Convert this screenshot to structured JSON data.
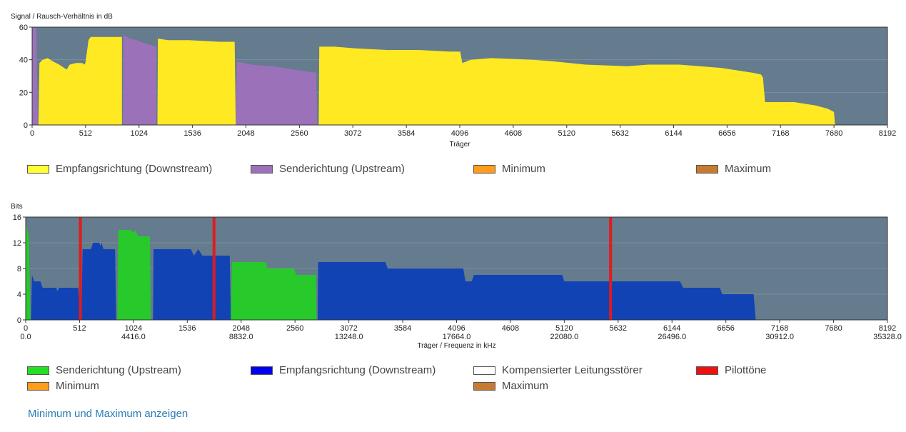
{
  "chart_data": [
    {
      "type": "area",
      "ylabel": "Signal / Rausch-Verhältnis in dB",
      "xlabel": "Träger",
      "ylim": [
        0,
        60
      ],
      "xlim": [
        0,
        8192
      ],
      "yticks": [
        "0",
        "20",
        "40",
        "60"
      ],
      "xticks": [
        "0",
        "512",
        "1024",
        "1536",
        "2048",
        "2560",
        "3072",
        "3584",
        "4096",
        "4608",
        "5120",
        "5632",
        "6144",
        "6656",
        "7168",
        "7680",
        "8192"
      ],
      "plot_background": "#657b8e",
      "grid": true,
      "legend_position": "bottom",
      "series": [
        {
          "name": "Senderichtung (Upstream)",
          "color": "#9b72b9",
          "segments": [
            [
              [
                0,
                0
              ],
              [
                5,
                59
              ],
              [
                20,
                60
              ],
              [
                40,
                59
              ],
              [
                55,
                0
              ]
            ],
            [
              [
                870,
                0
              ],
              [
                875,
                55
              ],
              [
                940,
                53
              ],
              [
                1000,
                52
              ],
              [
                1080,
                50
              ],
              [
                1190,
                48
              ],
              [
                1190,
                0
              ]
            ],
            [
              [
                1950,
                0
              ],
              [
                1960,
                39
              ],
              [
                2100,
                37
              ],
              [
                2300,
                36
              ],
              [
                2500,
                34
              ],
              [
                2720,
                32
              ],
              [
                2730,
                0
              ]
            ]
          ]
        },
        {
          "name": "Empfangsrichtung (Downstream)",
          "color": "#ffe922",
          "segments": [
            [
              [
                60,
                0
              ],
              [
                70,
                38
              ],
              [
                100,
                40
              ],
              [
                150,
                41
              ],
              [
                200,
                39
              ],
              [
                260,
                37
              ],
              [
                330,
                34
              ],
              [
                360,
                37
              ],
              [
                420,
                38
              ],
              [
                480,
                38
              ],
              [
                500,
                37
              ],
              [
                510,
                38
              ],
              [
                525,
                45
              ],
              [
                540,
                52
              ],
              [
                560,
                54
              ],
              [
                860,
                54
              ],
              [
                860,
                0
              ]
            ],
            [
              [
                1200,
                0
              ],
              [
                1205,
                53
              ],
              [
                1300,
                52
              ],
              [
                1500,
                52
              ],
              [
                1800,
                51
              ],
              [
                1940,
                51
              ],
              [
                1950,
                0
              ]
            ],
            [
              [
                2745,
                0
              ],
              [
                2750,
                48
              ],
              [
                2900,
                48
              ],
              [
                3100,
                47
              ],
              [
                3400,
                46
              ],
              [
                3700,
                46
              ],
              [
                4000,
                45
              ],
              [
                4100,
                45
              ],
              [
                4120,
                38
              ],
              [
                4200,
                40
              ],
              [
                4400,
                41
              ],
              [
                4800,
                40
              ],
              [
                5000,
                39
              ],
              [
                5300,
                37
              ],
              [
                5700,
                36
              ],
              [
                5900,
                37
              ],
              [
                6200,
                37
              ],
              [
                6600,
                35
              ],
              [
                6900,
                32
              ],
              [
                6980,
                31
              ],
              [
                7000,
                29
              ],
              [
                7020,
                14
              ],
              [
                7300,
                14
              ],
              [
                7500,
                12
              ],
              [
                7620,
                10
              ],
              [
                7680,
                8
              ],
              [
                7690,
                0
              ]
            ]
          ]
        },
        {
          "name": "Minimum",
          "color": "#ff9c1a",
          "segments": []
        },
        {
          "name": "Maximum",
          "color": "#c87b30",
          "segments": []
        }
      ]
    },
    {
      "type": "area",
      "ylabel": "Bits",
      "xlabel": "Träger / Frequenz in kHz",
      "ylim": [
        0,
        16
      ],
      "xlim": [
        0,
        8192
      ],
      "yticks": [
        "0",
        "4",
        "8",
        "12",
        "16"
      ],
      "xticks": [
        "0",
        "512",
        "1024",
        "1536",
        "2048",
        "2560",
        "3072",
        "3584",
        "4096",
        "4608",
        "5120",
        "5632",
        "6144",
        "6656",
        "7168",
        "7680",
        "8192"
      ],
      "freq_ticks": [
        "0.0",
        "4416.0",
        "8832.0",
        "13248.0",
        "17664.0",
        "22080.0",
        "26496.0",
        "30912.0",
        "35328.0"
      ],
      "plot_background": "#657b8e",
      "grid": true,
      "legend_position": "bottom",
      "series": [
        {
          "name": "Senderichtung (Upstream)",
          "color": "#27c92b",
          "segments": [
            [
              [
                0,
                0
              ],
              [
                2,
                15
              ],
              [
                15,
                14
              ],
              [
                30,
                13
              ],
              [
                45,
                0
              ]
            ],
            [
              [
                870,
                0
              ],
              [
                880,
                14
              ],
              [
                1000,
                14
              ],
              [
                1020,
                13.5
              ],
              [
                1040,
                14
              ],
              [
                1070,
                13
              ],
              [
                1180,
                13
              ],
              [
                1190,
                0
              ]
            ],
            [
              [
                1950,
                0
              ],
              [
                1960,
                9
              ],
              [
                2280,
                9
              ],
              [
                2300,
                8
              ],
              [
                2550,
                8
              ],
              [
                2570,
                7
              ],
              [
                2760,
                7
              ],
              [
                2765,
                0
              ]
            ]
          ]
        },
        {
          "name": "Empfangsrichtung (Downstream)",
          "color": "#1243b4",
          "segments": [
            [
              [
                50,
                0
              ],
              [
                60,
                7
              ],
              [
                80,
                6
              ],
              [
                140,
                6
              ],
              [
                160,
                5
              ],
              [
                290,
                5
              ],
              [
                300,
                4.5
              ],
              [
                320,
                5
              ],
              [
                500,
                5
              ],
              [
                520,
                0
              ]
            ],
            [
              [
                530,
                0
              ],
              [
                540,
                11
              ],
              [
                620,
                11
              ],
              [
                640,
                12
              ],
              [
                700,
                12
              ],
              [
                710,
                11.5
              ],
              [
                720,
                12
              ],
              [
                740,
                11
              ],
              [
                850,
                11
              ],
              [
                860,
                0
              ]
            ],
            [
              [
                1210,
                0
              ],
              [
                1215,
                11
              ],
              [
                1570,
                11
              ],
              [
                1600,
                10
              ],
              [
                1640,
                11
              ],
              [
                1680,
                10
              ],
              [
                1940,
                10
              ],
              [
                1950,
                0
              ]
            ],
            [
              [
                2775,
                0
              ],
              [
                2780,
                9
              ],
              [
                3420,
                9
              ],
              [
                3440,
                8
              ],
              [
                4160,
                8
              ],
              [
                4180,
                6
              ],
              [
                4240,
                6
              ],
              [
                4260,
                7
              ],
              [
                5100,
                7
              ],
              [
                5120,
                6
              ],
              [
                6220,
                6
              ],
              [
                6250,
                5
              ],
              [
                6600,
                5
              ],
              [
                6620,
                4
              ],
              [
                6920,
                4
              ],
              [
                6940,
                0
              ]
            ]
          ]
        },
        {
          "name": "Kompensierter Leitungsstörer",
          "color": "#ffffff",
          "segments": []
        },
        {
          "name": "Pilottöne",
          "color": "#e01b1b",
          "positions": [
            520,
            1790,
            5560
          ]
        },
        {
          "name": "Minimum",
          "color": "#ff9c1a",
          "segments": []
        },
        {
          "name": "Maximum",
          "color": "#c87b30",
          "segments": []
        }
      ]
    }
  ],
  "snr_legend": [
    {
      "label": "Empfangsrichtung (Downstream)",
      "color": "#ffff33"
    },
    {
      "label": "Senderichtung (Upstream)",
      "color": "#9b72b9"
    },
    {
      "label": "Minimum",
      "color": "#ff9c1a"
    },
    {
      "label": "Maximum",
      "color": "#c87b30"
    }
  ],
  "bits_legend": [
    {
      "label": "Senderichtung (Upstream)",
      "color": "#22e022"
    },
    {
      "label": "Empfangsrichtung (Downstream)",
      "color": "#0000ee"
    },
    {
      "label": "Kompensierter Leitungsstörer",
      "color": "#ffffff"
    },
    {
      "label": "Pilottöne",
      "color": "#ee1111"
    },
    {
      "label": "Minimum",
      "color": "#ff9c1a"
    },
    {
      "label": "Maximum",
      "color": "#c87b30"
    }
  ],
  "toggle_link": "Minimum und Maximum anzeigen"
}
